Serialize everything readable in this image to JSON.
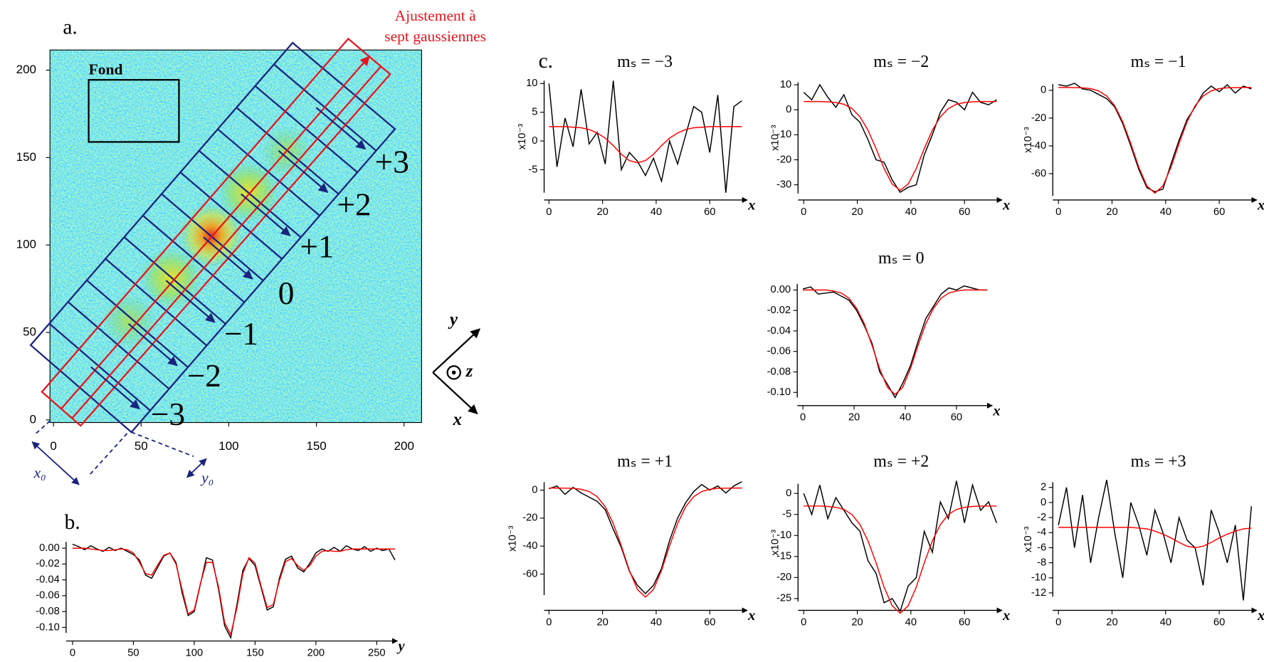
{
  "chart_data": [
    {
      "type": "image",
      "label": "a.",
      "xlim": [
        -2,
        210
      ],
      "ylim": [
        -1.5,
        211.5
      ],
      "xticks": [
        0,
        50,
        100,
        150,
        200
      ],
      "yticks": [
        0,
        50,
        100,
        150,
        200
      ],
      "region_label": "Fond",
      "fit_label": [
        "Ajustement à",
        "sept gaussiennes"
      ],
      "order_labels": [
        "−3",
        "−2",
        "−1",
        "0",
        "+1",
        "+2",
        "+3"
      ],
      "offset_labels": [
        "x₀",
        "y₀"
      ],
      "axis_labels": [
        "y",
        "z",
        "x"
      ]
    },
    {
      "type": "line",
      "label": "b.",
      "xlabel": "y",
      "x": [
        0,
        5,
        10,
        15,
        20,
        25,
        30,
        35,
        40,
        45,
        50,
        55,
        60,
        65,
        70,
        75,
        80,
        85,
        90,
        95,
        100,
        105,
        110,
        115,
        120,
        125,
        130,
        135,
        140,
        145,
        150,
        155,
        160,
        165,
        170,
        175,
        180,
        185,
        190,
        195,
        200,
        205,
        210,
        215,
        220,
        225,
        230,
        235,
        240,
        245,
        250,
        255,
        260,
        265
      ],
      "series": [
        {
          "color": "#000000",
          "values": [
            0.005,
            0.002,
            -0.002,
            0.003,
            -0.001,
            -0.004,
            0.001,
            -0.003,
            0,
            -0.004,
            -0.008,
            -0.015,
            -0.034,
            -0.038,
            -0.024,
            -0.01,
            -0.006,
            -0.018,
            -0.056,
            -0.085,
            -0.08,
            -0.046,
            -0.012,
            -0.015,
            -0.052,
            -0.098,
            -0.113,
            -0.072,
            -0.028,
            -0.013,
            -0.022,
            -0.05,
            -0.078,
            -0.074,
            -0.038,
            -0.014,
            -0.01,
            -0.025,
            -0.03,
            -0.019,
            -0.006,
            -0.001,
            -0.004,
            0.001,
            -0.004,
            0.003,
            -0.001,
            -0.003,
            0.002,
            -0.004,
            0,
            -0.003,
            -0.001,
            -0.015
          ]
        },
        {
          "color": "#ff0000",
          "values": [
            0,
            0,
            0,
            -0.001,
            -0.002,
            -0.003,
            -0.003,
            -0.002,
            -0.001,
            -0.002,
            -0.006,
            -0.018,
            -0.032,
            -0.034,
            -0.021,
            -0.009,
            -0.006,
            -0.02,
            -0.052,
            -0.083,
            -0.078,
            -0.045,
            -0.018,
            -0.018,
            -0.049,
            -0.094,
            -0.109,
            -0.076,
            -0.032,
            -0.012,
            -0.019,
            -0.048,
            -0.075,
            -0.071,
            -0.041,
            -0.017,
            -0.013,
            -0.022,
            -0.028,
            -0.022,
            -0.01,
            -0.004,
            -0.003,
            -0.004,
            -0.004,
            -0.002,
            -0.001,
            -0.001,
            -0.001,
            -0.001,
            -0.001,
            -0.001,
            -0.001,
            -0.001
          ]
        }
      ],
      "xlim": [
        0,
        267
      ],
      "ylim": [
        -0.107,
        0.008
      ],
      "xticks": [
        0,
        50,
        100,
        150,
        200,
        250
      ],
      "yticks": [
        {
          "value": 0,
          "label": "0.00"
        },
        -0.02,
        -0.04,
        -0.06,
        -0.08,
        {
          "value": -0.1,
          "label": "-0.10"
        }
      ]
    },
    {
      "type": "line",
      "label": "c.",
      "title": "mₛ = −3",
      "xlabel": "x",
      "ylabel": "x10⁻³",
      "x": [
        0,
        3,
        6,
        9,
        12,
        15,
        18,
        21,
        24,
        27,
        30,
        33,
        36,
        39,
        42,
        45,
        48,
        51,
        54,
        57,
        60,
        63,
        66,
        69,
        72
      ],
      "series": [
        {
          "color": "#000000",
          "values": [
            10,
            -4.5,
            4,
            -1,
            9,
            -0.5,
            1.5,
            -4,
            10.5,
            -5,
            -2,
            -3.5,
            -6,
            -3,
            -7,
            0,
            -4,
            1,
            6,
            5,
            -2,
            8,
            -9,
            6,
            7
          ]
        },
        {
          "color": "#ff0000",
          "values": [
            2.5,
            2.5,
            2.5,
            2.4,
            2.3,
            2,
            1.4,
            0.5,
            -0.8,
            -2.3,
            -3.4,
            -3.8,
            -3.4,
            -2.3,
            -0.8,
            0.5,
            1.4,
            2,
            2.3,
            2.4,
            2.5,
            2.5,
            2.5,
            2.5,
            2.5
          ]
        }
      ],
      "xlim": [
        0,
        74
      ],
      "ylim": [
        -9,
        10.5
      ],
      "xticks": [
        0,
        20,
        40,
        60
      ],
      "yticks": [
        10,
        5,
        0,
        -5
      ]
    },
    {
      "type": "line",
      "title": "mₛ = −2",
      "xlabel": "x",
      "ylabel": "x10⁻³",
      "x": [
        0,
        3,
        6,
        9,
        12,
        15,
        18,
        21,
        24,
        27,
        30,
        33,
        36,
        39,
        42,
        45,
        48,
        51,
        54,
        57,
        60,
        63,
        66,
        69,
        72
      ],
      "series": [
        {
          "color": "#000000",
          "values": [
            7,
            4,
            10,
            5,
            1,
            6,
            -2,
            -5,
            -12,
            -20,
            -21,
            -28,
            -33,
            -31,
            -30,
            -18,
            -10,
            -1,
            4,
            3,
            0,
            7,
            3,
            2,
            4
          ]
        },
        {
          "color": "#ff0000",
          "values": [
            3.3,
            3.3,
            3.3,
            3.2,
            2.9,
            2.2,
            0.5,
            -2.8,
            -8.2,
            -15.5,
            -23.5,
            -29.7,
            -32.2,
            -29.7,
            -23.5,
            -15.5,
            -8.2,
            -2.8,
            0.5,
            2.2,
            2.9,
            3.2,
            3.3,
            3.3,
            3.3
          ]
        }
      ],
      "xlim": [
        0,
        74
      ],
      "ylim": [
        -33.5,
        11
      ],
      "xticks": [
        0,
        20,
        40,
        60
      ],
      "yticks": [
        10,
        0,
        -10,
        -20,
        -30
      ]
    },
    {
      "type": "line",
      "title": "mₛ = −1",
      "xlabel": "x",
      "ylabel": "x10⁻³",
      "x": [
        0,
        3,
        6,
        9,
        12,
        15,
        18,
        21,
        24,
        27,
        30,
        33,
        36,
        39,
        42,
        45,
        48,
        51,
        54,
        57,
        60,
        63,
        66,
        69,
        72
      ],
      "series": [
        {
          "color": "#000000",
          "values": [
            4,
            3,
            5,
            1,
            0,
            -3,
            -6,
            -12,
            -24,
            -40,
            -57,
            -70,
            -73,
            -71,
            -53,
            -36,
            -21,
            -12,
            -2,
            3,
            -1,
            4,
            -2,
            3,
            1
          ]
        },
        {
          "color": "#ff0000",
          "values": [
            2,
            2,
            1.9,
            1.8,
            1.2,
            -0.4,
            -4.1,
            -11.1,
            -22.7,
            -38.3,
            -55.4,
            -68.7,
            -74,
            -68.7,
            -55.4,
            -38.3,
            -22.7,
            -11.1,
            -4.1,
            -0.4,
            1.2,
            1.8,
            1.9,
            2,
            2
          ]
        }
      ],
      "xlim": [
        0,
        74
      ],
      "ylim": [
        -76,
        4.6
      ],
      "xticks": [
        0,
        20,
        40,
        60
      ],
      "yticks": [
        0,
        -20,
        -40,
        -60
      ]
    },
    {
      "type": "line",
      "title": "mₛ = 0",
      "xlabel": "x",
      "x": [
        0,
        3,
        6,
        9,
        12,
        15,
        18,
        21,
        24,
        27,
        30,
        33,
        36,
        39,
        42,
        45,
        48,
        51,
        54,
        57,
        60,
        63,
        66,
        69,
        72
      ],
      "series": [
        {
          "color": "#000000",
          "values": [
            0.001,
            0.003,
            -0.004,
            -0.003,
            -0.002,
            -0.006,
            -0.01,
            -0.02,
            -0.035,
            -0.052,
            -0.08,
            -0.092,
            -0.105,
            -0.091,
            -0.074,
            -0.05,
            -0.028,
            -0.016,
            -0.004,
            0.002,
            0,
            0.004,
            0.002,
            0,
            0
          ]
        },
        {
          "color": "#ff0000",
          "values": [
            0,
            0,
            0,
            0,
            -0.001,
            -0.003,
            -0.008,
            -0.018,
            -0.033,
            -0.054,
            -0.077,
            -0.095,
            -0.102,
            -0.095,
            -0.077,
            -0.054,
            -0.033,
            -0.018,
            -0.008,
            -0.003,
            -0.001,
            0,
            0,
            0,
            0
          ]
        }
      ],
      "xlim": [
        0,
        74
      ],
      "ylim": [
        -0.105,
        0.006
      ],
      "xticks": [
        0,
        20,
        40,
        60
      ],
      "yticks": [
        {
          "value": 0,
          "label": "0.00"
        },
        -0.02,
        -0.04,
        -0.06,
        -0.08,
        {
          "value": -0.1,
          "label": "-0.10"
        }
      ]
    },
    {
      "type": "line",
      "title": "mₛ = +1",
      "xlabel": "x",
      "ylabel": "x10⁻³",
      "x": [
        0,
        3,
        6,
        9,
        12,
        15,
        18,
        21,
        24,
        27,
        30,
        33,
        36,
        39,
        42,
        45,
        48,
        51,
        54,
        57,
        60,
        63,
        66,
        69,
        72
      ],
      "series": [
        {
          "color": "#000000",
          "values": [
            1,
            3,
            -3,
            2,
            -2,
            -5,
            -8,
            -14,
            -28,
            -41,
            -58,
            -68,
            -74,
            -68,
            -56,
            -36,
            -20,
            -9,
            -1,
            4,
            0,
            3,
            -2,
            3,
            6
          ]
        },
        {
          "color": "#ff0000",
          "values": [
            1.5,
            1.5,
            1.4,
            1.3,
            0.6,
            -1,
            -4.7,
            -11.9,
            -23.9,
            -39.8,
            -57.4,
            -71,
            -76.5,
            -71,
            -57.4,
            -39.8,
            -23.9,
            -11.9,
            -4.7,
            -1,
            0.6,
            1.3,
            1.4,
            1.5,
            1.5
          ]
        }
      ],
      "xlim": [
        0,
        74
      ],
      "ylim": [
        -75,
        5.7
      ],
      "xticks": [
        0,
        20,
        40,
        60
      ],
      "yticks": [
        0,
        -20,
        -40,
        -60
      ]
    },
    {
      "type": "line",
      "title": "mₛ = +2",
      "xlabel": "x",
      "ylabel": "x10⁻³",
      "x": [
        0,
        3,
        6,
        9,
        12,
        15,
        18,
        21,
        24,
        27,
        30,
        33,
        36,
        39,
        42,
        45,
        48,
        51,
        54,
        57,
        60,
        63,
        66,
        69,
        72
      ],
      "series": [
        {
          "color": "#000000",
          "values": [
            0,
            -5,
            2,
            -6,
            -1,
            -4,
            -7,
            -9,
            -16,
            -19,
            -26,
            -25,
            -28,
            -22,
            -20,
            -9,
            -14,
            -2,
            -6,
            3,
            -7,
            2,
            -4,
            -2,
            -7
          ]
        },
        {
          "color": "#ff0000",
          "values": [
            -3,
            -3,
            -3,
            -3.1,
            -3.3,
            -3.8,
            -5,
            -7.4,
            -11.3,
            -16.5,
            -22.3,
            -26.7,
            -28.5,
            -26.7,
            -22.3,
            -16.5,
            -11.3,
            -7.4,
            -5,
            -3.8,
            -3.3,
            -3.1,
            -3,
            -3,
            -3
          ]
        }
      ],
      "xlim": [
        0,
        74
      ],
      "ylim": [
        -25.7,
        2.3
      ],
      "xticks": [
        0,
        20,
        40,
        60
      ],
      "yticks": [
        0,
        -5,
        -10,
        -15,
        -20,
        -25
      ]
    },
    {
      "type": "line",
      "title": "mₛ = +3",
      "xlabel": "x",
      "ylabel": "x10⁻³",
      "x": [
        0,
        3,
        6,
        9,
        12,
        15,
        18,
        21,
        24,
        27,
        30,
        33,
        36,
        39,
        42,
        45,
        48,
        51,
        54,
        57,
        60,
        63,
        66,
        69,
        72
      ],
      "series": [
        {
          "color": "#000000",
          "values": [
            -3,
            2,
            -6,
            1,
            -8,
            -2,
            3,
            -4,
            -10,
            0,
            -3,
            -7,
            -1,
            -4,
            -8,
            -2,
            -5,
            -6,
            -11,
            -1,
            -4,
            -8,
            -3,
            -13,
            -0.5
          ]
        },
        {
          "color": "#ff0000",
          "values": [
            -3.3,
            -3.3,
            -3.3,
            -3.3,
            -3.3,
            -3.3,
            -3.3,
            -3.3,
            -3.3,
            -3.3,
            -3.4,
            -3.5,
            -3.8,
            -4.2,
            -4.7,
            -5.3,
            -5.8,
            -6,
            -5.8,
            -5.3,
            -4.7,
            -4.2,
            -3.8,
            -3.5,
            -3.4
          ]
        }
      ],
      "xlim": [
        0,
        74
      ],
      "ylim": [
        -12.5,
        2.7
      ],
      "xticks": [
        0,
        20,
        40,
        60
      ],
      "yticks": [
        2,
        0,
        -2,
        -4,
        -6,
        -8,
        -10,
        -12
      ]
    }
  ]
}
